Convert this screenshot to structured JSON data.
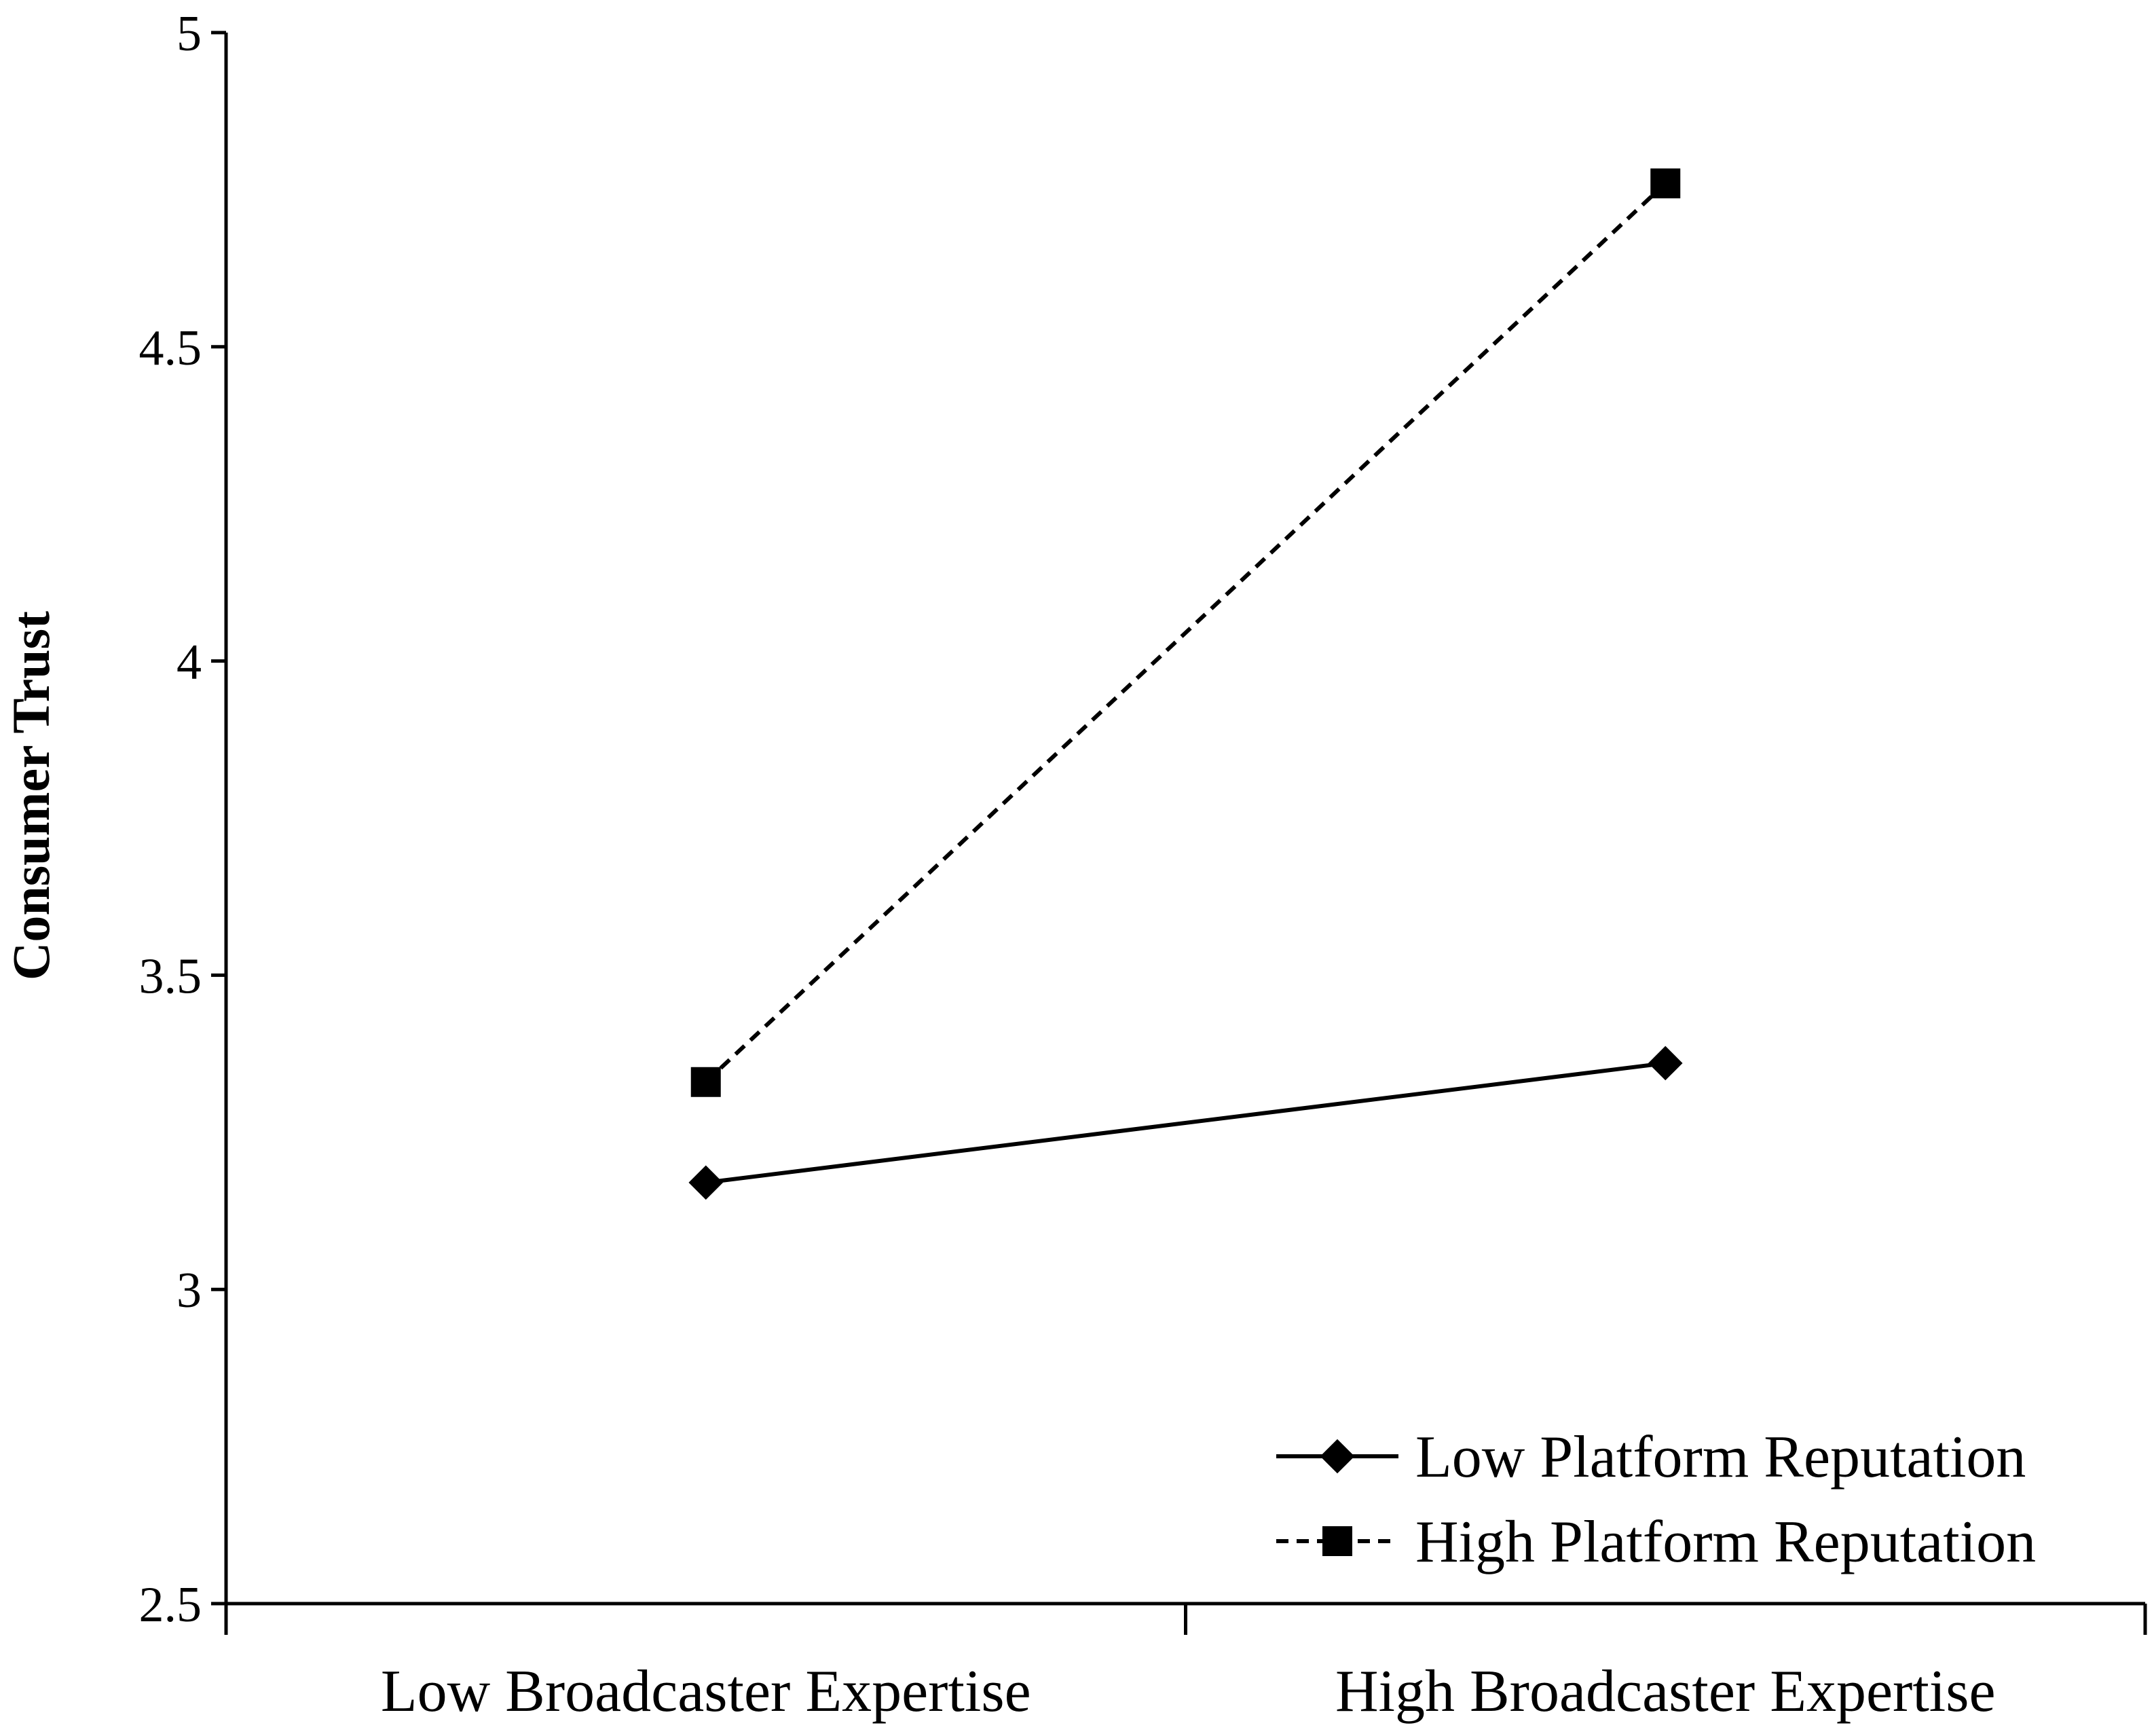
{
  "chart_data": {
    "type": "line",
    "title": "",
    "xlabel": "",
    "ylabel": "Consumer Trust",
    "categories": [
      "Low Broadcaster Expertise",
      "High Broadcaster Expertise"
    ],
    "ylim": [
      2.5,
      5
    ],
    "yticks": [
      "2.5",
      "3",
      "3.5",
      "4",
      "4.5",
      "5"
    ],
    "grid": false,
    "legend_position": "bottom-right",
    "series": [
      {
        "name": "Low Platform Reputation",
        "values": [
          3.17,
          3.36
        ],
        "line_style": "solid",
        "marker": "diamond",
        "color": "#000000"
      },
      {
        "name": "High Platform Reputation",
        "values": [
          3.33,
          4.76
        ],
        "line_style": "dashed",
        "marker": "square",
        "color": "#000000"
      }
    ]
  }
}
